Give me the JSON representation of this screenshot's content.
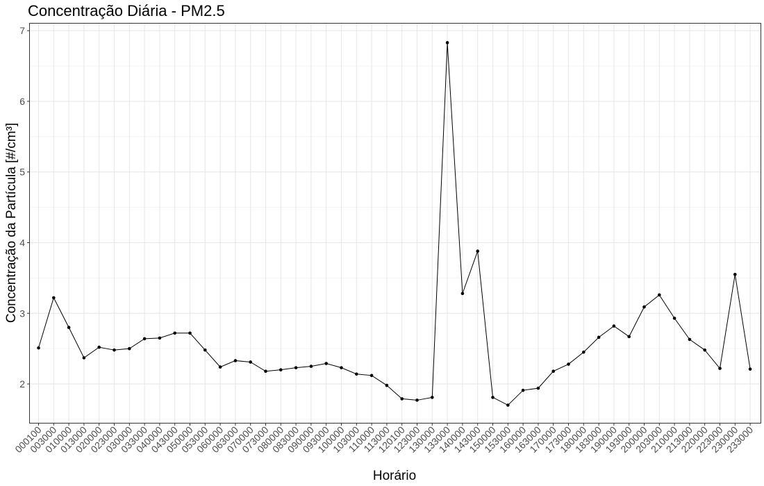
{
  "chart_data": {
    "type": "line",
    "title": "Concentração Diária - PM2.5",
    "xlabel": "Horário",
    "ylabel": "Concentração da Partícula [#/cm³]",
    "ylim": [
      1.45,
      7.1
    ],
    "yticks": [
      2,
      3,
      4,
      5,
      6,
      7
    ],
    "grid": true,
    "categories": [
      "000100",
      "003000",
      "010000",
      "013000",
      "020000",
      "023000",
      "030000",
      "033000",
      "040000",
      "043000",
      "050000",
      "053000",
      "060000",
      "063000",
      "070000",
      "073000",
      "080000",
      "083000",
      "090000",
      "093000",
      "100000",
      "103000",
      "110000",
      "113000",
      "120100",
      "123000",
      "130000",
      "133000",
      "140000",
      "143000",
      "150000",
      "153000",
      "160000",
      "163000",
      "170000",
      "173000",
      "180000",
      "183000",
      "190000",
      "193000",
      "200000",
      "203000",
      "210000",
      "213000",
      "220000",
      "223000",
      "230000",
      "233000"
    ],
    "series": [
      {
        "values": [
          2.51,
          3.22,
          2.8,
          2.37,
          2.52,
          2.48,
          2.5,
          2.64,
          2.65,
          2.72,
          2.72,
          2.48,
          2.24,
          2.33,
          2.31,
          2.18,
          2.2,
          2.23,
          2.25,
          2.29,
          2.23,
          2.14,
          2.12,
          1.98,
          1.79,
          1.77,
          1.81,
          6.83,
          3.28,
          3.88,
          1.81,
          1.7,
          1.91,
          1.94,
          2.18,
          2.28,
          2.45,
          2.66,
          2.82,
          2.67,
          3.09,
          3.26,
          2.93,
          2.63,
          2.48,
          2.22,
          3.55,
          2.21
        ]
      }
    ]
  }
}
